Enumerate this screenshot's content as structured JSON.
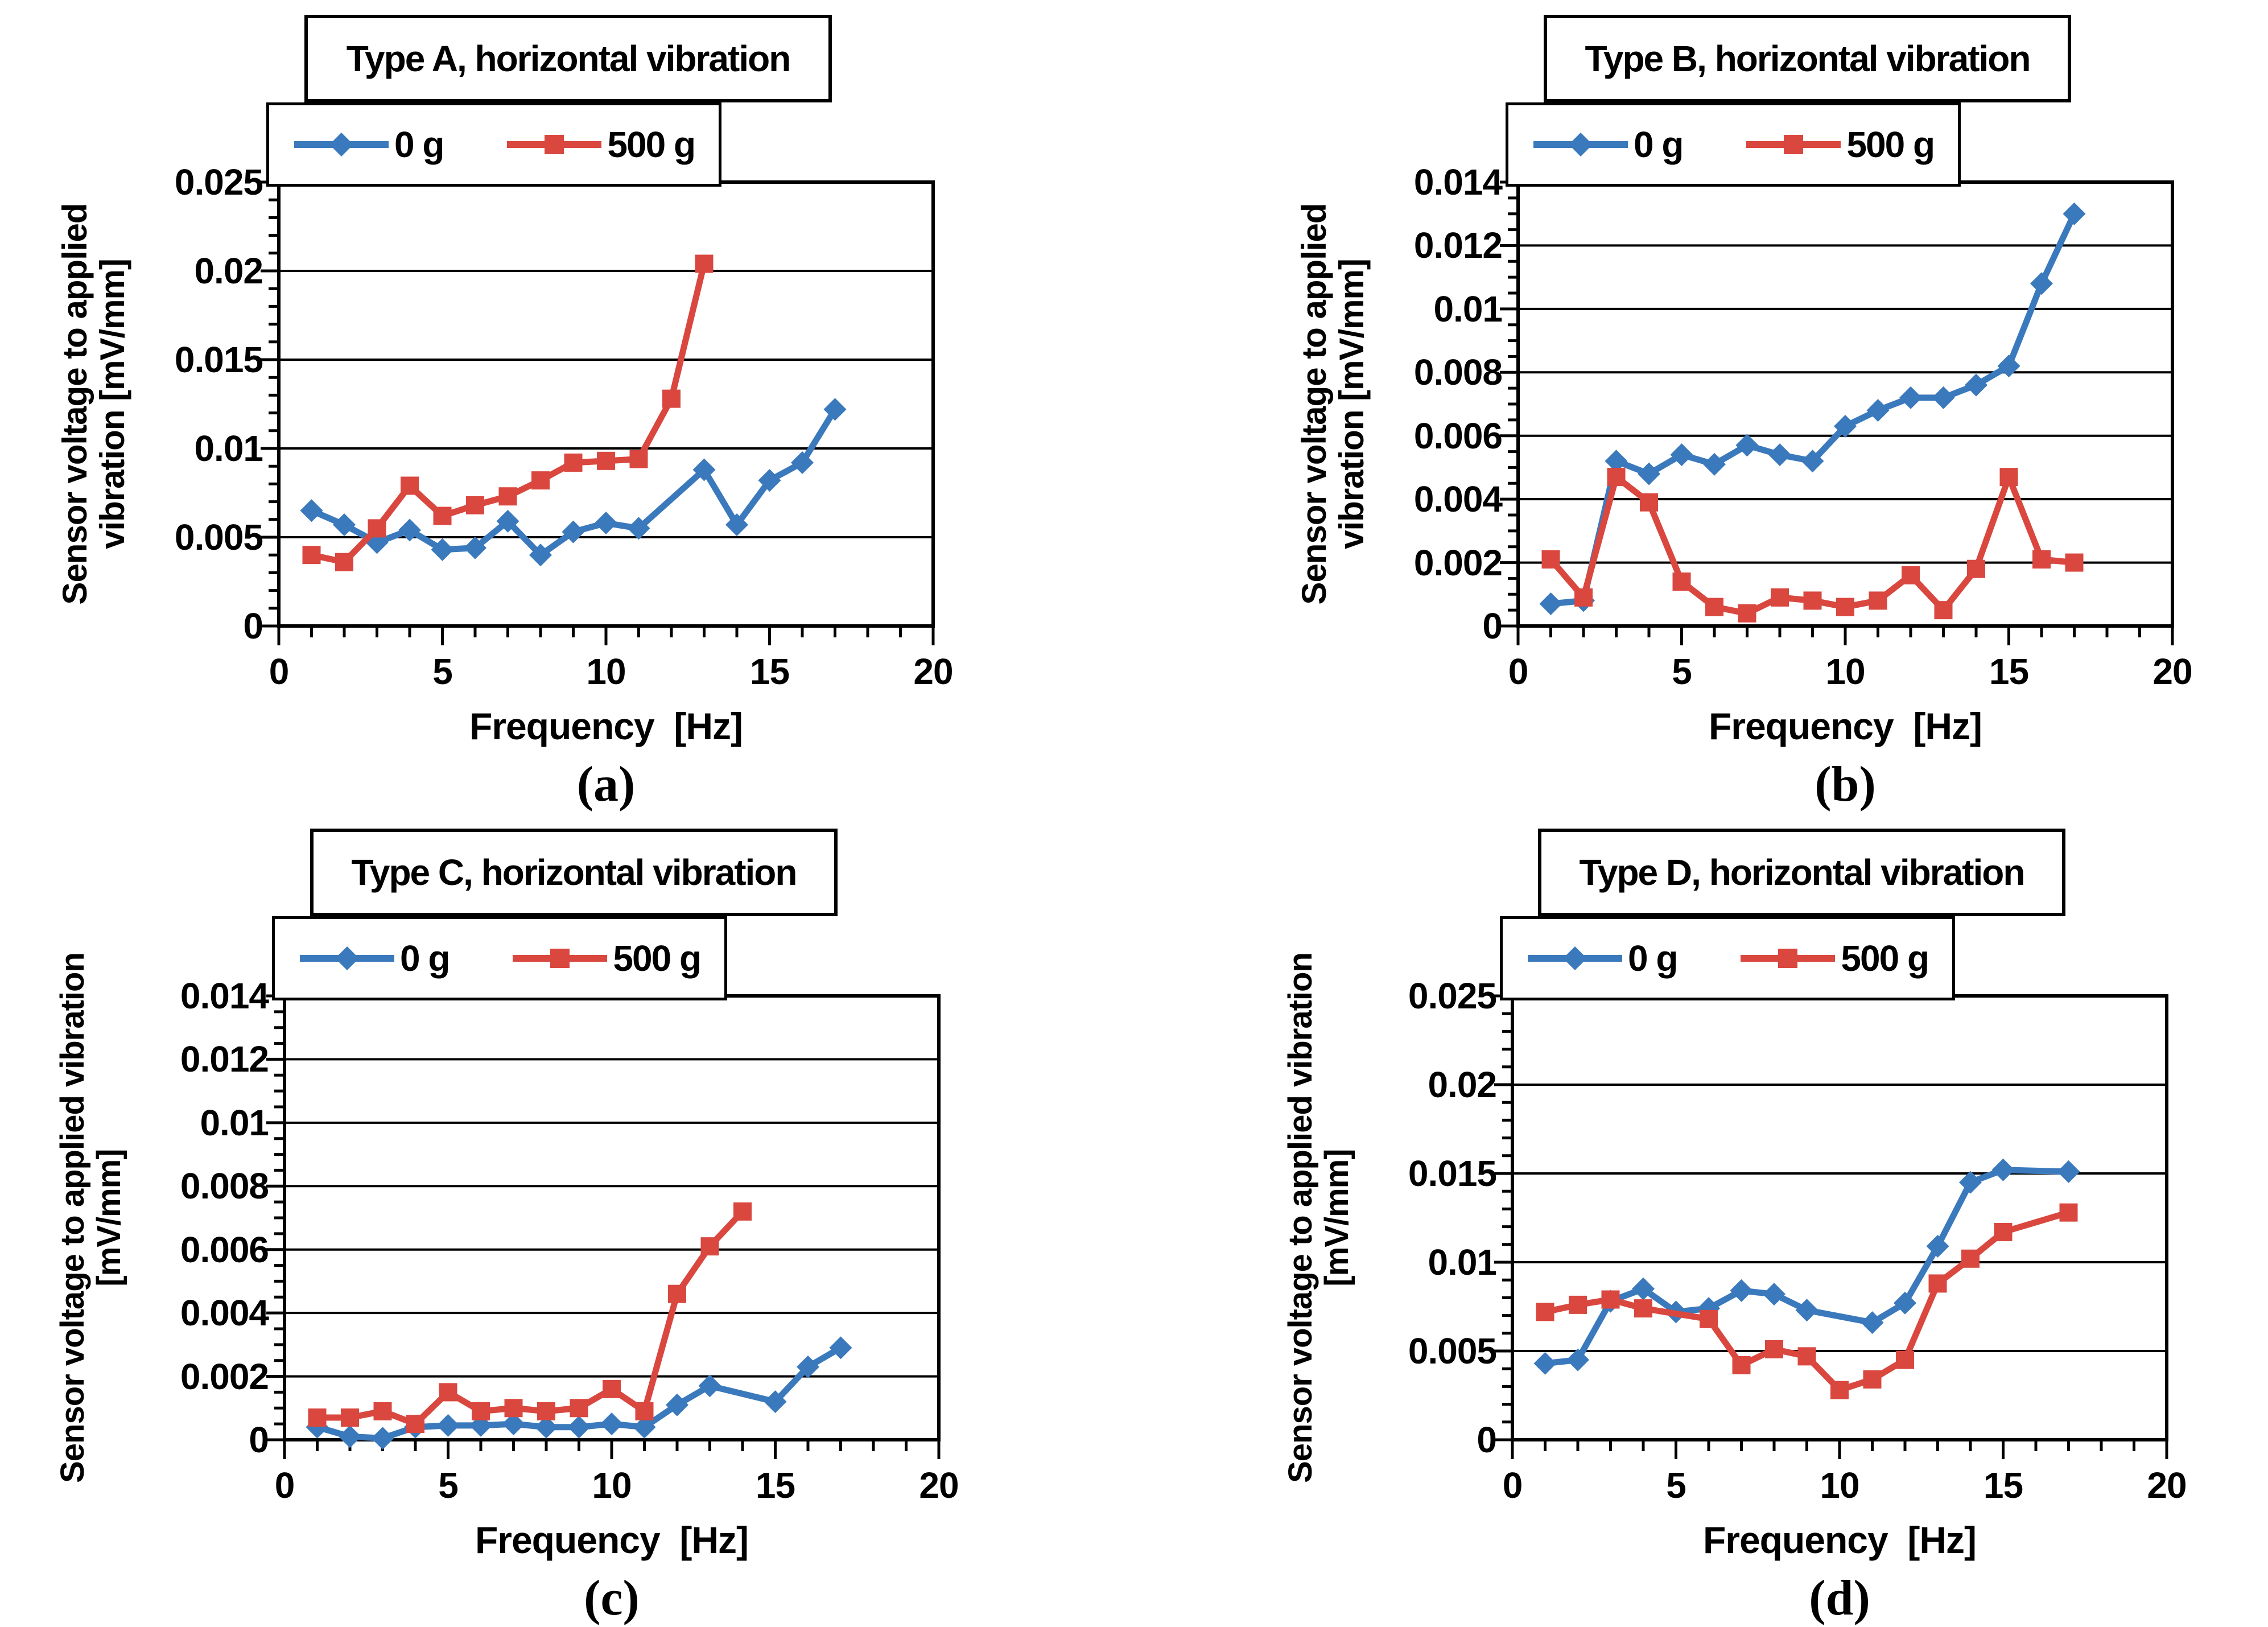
{
  "figure": {
    "background": "#ffffff",
    "colors": {
      "series_0g": "#3b79bd",
      "series_500g": "#d9473f",
      "axis": "#000000"
    }
  },
  "chart_data": [
    {
      "id": "a",
      "type": "line",
      "title": "Type A, horizontal vibration",
      "caption": "(a)",
      "xlabel": "Frequency  [Hz]",
      "ylabel_lines": [
        "Sensor voltage to applied",
        "vibration [mV/mm]"
      ],
      "xlim": [
        0,
        20
      ],
      "ylim": [
        0,
        0.025
      ],
      "x_major_ticks": [
        0,
        5,
        10,
        15,
        20
      ],
      "x_tick_labels": [
        "0",
        "5",
        "10",
        "15",
        "20"
      ],
      "x_minor_step": 1,
      "y_major_step": 0.005,
      "y_minor_step": 0.001,
      "y_tick_labels": [
        "0",
        "0.005",
        "0.01",
        "0.015",
        "0.02",
        "0.025"
      ],
      "grid": "horizontal-major",
      "legend_position": "top",
      "series": [
        {
          "name": "0 g",
          "marker": "diamond",
          "color": "#3b79bd",
          "points": [
            [
              1,
              0.0065
            ],
            [
              2,
              0.0057
            ],
            [
              3,
              0.0047
            ],
            [
              4,
              0.0054
            ],
            [
              5,
              0.0043
            ],
            [
              6,
              0.0044
            ],
            [
              7,
              0.0059
            ],
            [
              8,
              0.004
            ],
            [
              9,
              0.0053
            ],
            [
              10,
              0.0058
            ],
            [
              11,
              0.0055
            ],
            [
              13,
              0.0088
            ],
            [
              14,
              0.0057
            ],
            [
              15,
              0.0082
            ],
            [
              16,
              0.0092
            ],
            [
              17,
              0.0122
            ]
          ]
        },
        {
          "name": "500 g",
          "marker": "square",
          "color": "#d9473f",
          "points": [
            [
              1,
              0.004
            ],
            [
              2,
              0.0036
            ],
            [
              3,
              0.0055
            ],
            [
              4,
              0.0079
            ],
            [
              5,
              0.0062
            ],
            [
              6,
              0.0068
            ],
            [
              7,
              0.0073
            ],
            [
              8,
              0.0082
            ],
            [
              9,
              0.0092
            ],
            [
              10,
              0.0093
            ],
            [
              11,
              0.0094
            ],
            [
              12,
              0.0128
            ],
            [
              13,
              0.0204
            ]
          ]
        }
      ]
    },
    {
      "id": "b",
      "type": "line",
      "title": "Type B, horizontal vibration",
      "caption": "(b)",
      "xlabel": "Frequency  [Hz]",
      "ylabel_lines": [
        "Sensor voltage to applied",
        "vibration [mV/mm]"
      ],
      "xlim": [
        0,
        20
      ],
      "ylim": [
        0,
        0.014
      ],
      "x_major_ticks": [
        0,
        5,
        10,
        15,
        20
      ],
      "x_tick_labels": [
        "0",
        "5",
        "10",
        "15",
        "20"
      ],
      "x_minor_step": 1,
      "y_major_step": 0.002,
      "y_minor_step": 0.0005,
      "y_tick_labels": [
        "0",
        "0.002",
        "0.004",
        "0.006",
        "0.008",
        "0.01",
        "0.012",
        "0.014"
      ],
      "grid": "horizontal-major",
      "legend_position": "top",
      "series": [
        {
          "name": "0 g",
          "marker": "diamond",
          "color": "#3b79bd",
          "points": [
            [
              1,
              0.0007
            ],
            [
              2,
              0.0008
            ],
            [
              3,
              0.0052
            ],
            [
              4,
              0.0048
            ],
            [
              5,
              0.0054
            ],
            [
              6,
              0.0051
            ],
            [
              7,
              0.0057
            ],
            [
              8,
              0.0054
            ],
            [
              9,
              0.0052
            ],
            [
              10,
              0.0063
            ],
            [
              11,
              0.0068
            ],
            [
              12,
              0.0072
            ],
            [
              13,
              0.0072
            ],
            [
              14,
              0.0076
            ],
            [
              15,
              0.0082
            ],
            [
              16,
              0.0108
            ],
            [
              17,
              0.013
            ]
          ]
        },
        {
          "name": "500 g",
          "marker": "square",
          "color": "#d9473f",
          "points": [
            [
              1,
              0.0021
            ],
            [
              2,
              0.0009
            ],
            [
              3,
              0.0047
            ],
            [
              4,
              0.0039
            ],
            [
              5,
              0.0014
            ],
            [
              6,
              0.0006
            ],
            [
              7,
              0.0004
            ],
            [
              8,
              0.0009
            ],
            [
              9,
              0.0008
            ],
            [
              10,
              0.0006
            ],
            [
              11,
              0.0008
            ],
            [
              12,
              0.0016
            ],
            [
              13,
              0.0005
            ],
            [
              14,
              0.0018
            ],
            [
              15,
              0.0047
            ],
            [
              16,
              0.0021
            ],
            [
              17,
              0.002
            ]
          ]
        }
      ]
    },
    {
      "id": "c",
      "type": "line",
      "title": "Type C, horizontal vibration",
      "caption": "(c)",
      "xlabel": "Frequency  [Hz]",
      "ylabel_lines": [
        "Sensor voltage to applied vibration",
        "[mV/mm]"
      ],
      "xlim": [
        0,
        20
      ],
      "ylim": [
        0,
        0.014
      ],
      "x_major_ticks": [
        0,
        5,
        10,
        15,
        20
      ],
      "x_tick_labels": [
        "0",
        "5",
        "10",
        "15",
        "20"
      ],
      "x_minor_step": 1,
      "y_major_step": 0.002,
      "y_minor_step": 0.0005,
      "y_tick_labels": [
        "0",
        "0.002",
        "0.004",
        "0.006",
        "0.008",
        "0.01",
        "0.012",
        "0.014"
      ],
      "grid": "horizontal-major",
      "legend_position": "top",
      "series": [
        {
          "name": "0 g",
          "marker": "diamond",
          "color": "#3b79bd",
          "points": [
            [
              1,
              0.0004
            ],
            [
              2,
              0.0001
            ],
            [
              3,
              5e-05
            ],
            [
              4,
              0.0004
            ],
            [
              5,
              0.00045
            ],
            [
              6,
              0.00045
            ],
            [
              7,
              0.0005
            ],
            [
              8,
              0.0004
            ],
            [
              9,
              0.0004
            ],
            [
              10,
              0.0005
            ],
            [
              11,
              0.0004
            ],
            [
              12,
              0.0011
            ],
            [
              13,
              0.0017
            ],
            [
              15,
              0.0012
            ],
            [
              16,
              0.0023
            ],
            [
              17,
              0.0029
            ]
          ]
        },
        {
          "name": "500 g",
          "marker": "square",
          "color": "#d9473f",
          "points": [
            [
              1,
              0.0007
            ],
            [
              2,
              0.0007
            ],
            [
              3,
              0.0009
            ],
            [
              4,
              0.0005
            ],
            [
              5,
              0.0015
            ],
            [
              6,
              0.0009
            ],
            [
              7,
              0.001
            ],
            [
              8,
              0.0009
            ],
            [
              9,
              0.001
            ],
            [
              10,
              0.0016
            ],
            [
              11,
              0.0009
            ],
            [
              12,
              0.0046
            ],
            [
              13,
              0.0061
            ],
            [
              14,
              0.0072
            ]
          ]
        }
      ]
    },
    {
      "id": "d",
      "type": "line",
      "title": "Type D, horizontal vibration",
      "caption": "(d)",
      "xlabel": "Frequency  [Hz]",
      "ylabel_lines": [
        "Sensor voltage to applied vibration",
        "[mV/mm]"
      ],
      "xlim": [
        0,
        20
      ],
      "ylim": [
        0,
        0.025
      ],
      "x_major_ticks": [
        0,
        5,
        10,
        15,
        20
      ],
      "x_tick_labels": [
        "0",
        "5",
        "10",
        "15",
        "20"
      ],
      "x_minor_step": 1,
      "y_major_step": 0.005,
      "y_minor_step": 0.001,
      "y_tick_labels": [
        "0",
        "0.005",
        "0.01",
        "0.015",
        "0.02",
        "0.025"
      ],
      "grid": "horizontal-major",
      "legend_position": "top",
      "series": [
        {
          "name": "0 g",
          "marker": "diamond",
          "color": "#3b79bd",
          "points": [
            [
              1,
              0.0043
            ],
            [
              2,
              0.0045
            ],
            [
              3,
              0.0078
            ],
            [
              4,
              0.0085
            ],
            [
              5,
              0.0072
            ],
            [
              6,
              0.0074
            ],
            [
              7,
              0.0084
            ],
            [
              8,
              0.0082
            ],
            [
              9,
              0.0073
            ],
            [
              11,
              0.0066
            ],
            [
              12,
              0.0077
            ],
            [
              13,
              0.0109
            ],
            [
              14,
              0.0145
            ],
            [
              15,
              0.0152
            ],
            [
              17,
              0.0151
            ]
          ]
        },
        {
          "name": "500 g",
          "marker": "square",
          "color": "#d9473f",
          "points": [
            [
              1,
              0.0072
            ],
            [
              2,
              0.0076
            ],
            [
              3,
              0.0079
            ],
            [
              4,
              0.0074
            ],
            [
              6,
              0.0068
            ],
            [
              7,
              0.0042
            ],
            [
              8,
              0.0051
            ],
            [
              9,
              0.0047
            ],
            [
              10,
              0.0028
            ],
            [
              11,
              0.0034
            ],
            [
              12,
              0.0045
            ],
            [
              13,
              0.0088
            ],
            [
              14,
              0.0102
            ],
            [
              15,
              0.0117
            ],
            [
              17,
              0.0128
            ]
          ]
        }
      ]
    }
  ]
}
